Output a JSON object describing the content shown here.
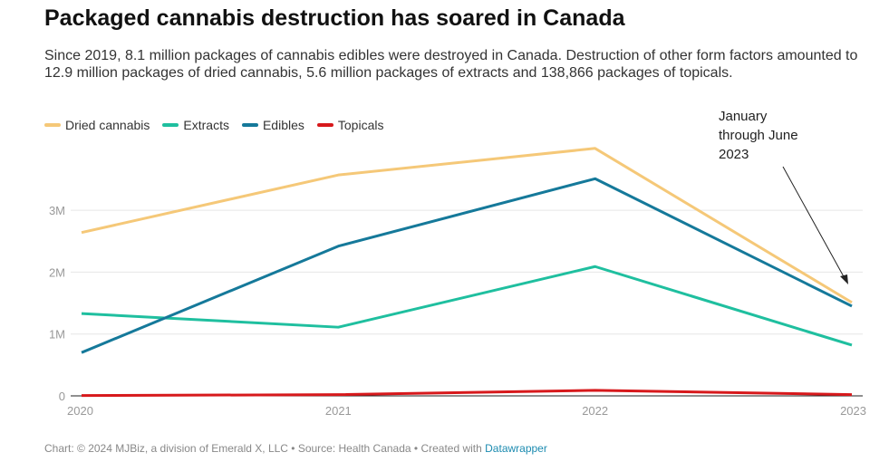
{
  "title": "Packaged cannabis destruction has soared in Canada",
  "subtitle": "Since 2019, 8.1 million packages of cannabis edibles were destroyed in Canada. Destruction of other form factors amounted to 12.9 million packages of dried cannabis, 5.6 million packages of extracts and 138,866 packages of topicals.",
  "footer": {
    "text": "Chart: © 2024 MJBiz, a division of Emerald X, LLC • Source: Health Canada • Created with ",
    "link": "Datawrapper"
  },
  "chart_data": {
    "type": "line",
    "x": [
      "2020",
      "2021",
      "2022",
      "2023"
    ],
    "ylim": [
      0,
      4000000
    ],
    "yticks": [
      {
        "value": 0,
        "label": "0"
      },
      {
        "value": 1000000,
        "label": "1M"
      },
      {
        "value": 2000000,
        "label": "2M"
      },
      {
        "value": 3000000,
        "label": "3M"
      }
    ],
    "grid": true,
    "legend": "top-left",
    "series": [
      {
        "name": "Dried cannabis",
        "color": "#f5c878",
        "values": [
          2640000,
          3570000,
          4000000,
          1510000
        ]
      },
      {
        "name": "Extracts",
        "color": "#1fbf9f",
        "values": [
          1330000,
          1110000,
          2090000,
          820000
        ]
      },
      {
        "name": "Edibles",
        "color": "#15799a",
        "values": [
          700000,
          2420000,
          3510000,
          1450000
        ]
      },
      {
        "name": "Topicals",
        "color": "#d7191c",
        "values": [
          5000,
          20000,
          90000,
          20000
        ]
      }
    ],
    "annotation": {
      "lines": [
        "January",
        "through June",
        "2023"
      ]
    }
  }
}
